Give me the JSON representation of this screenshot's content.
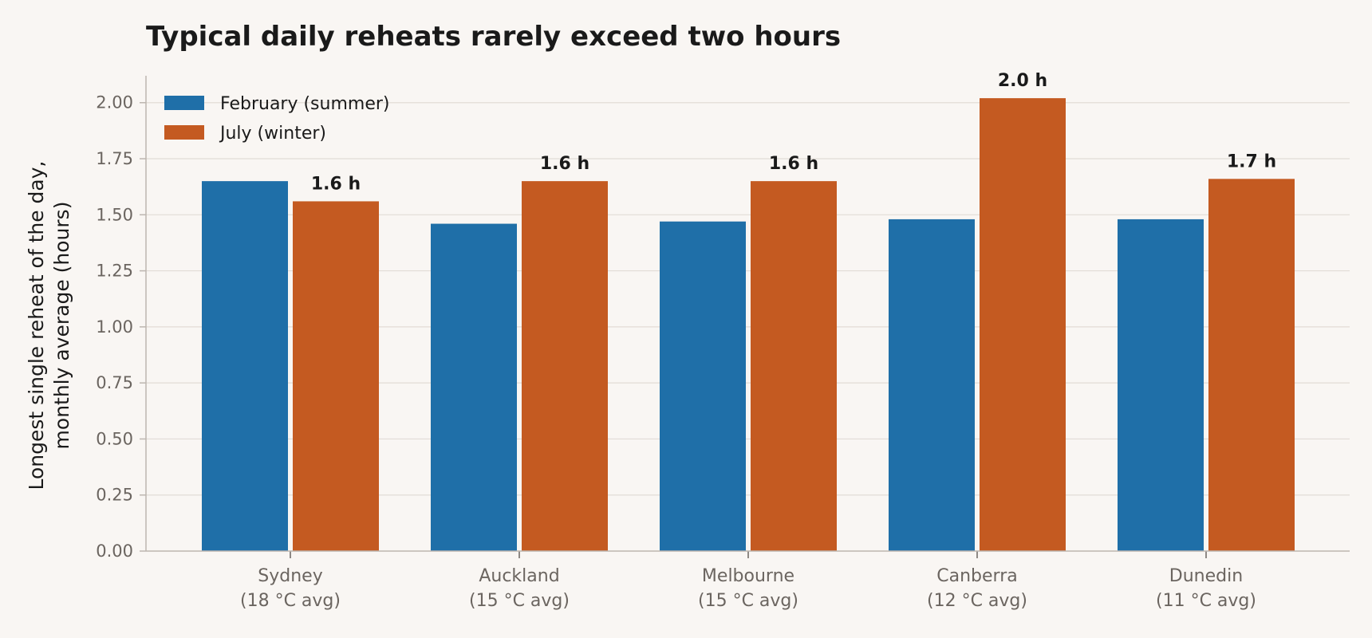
{
  "chart_data": {
    "type": "bar",
    "title": "Typical daily reheats rarely exceed two hours",
    "ylabel_lines": [
      "Longest single reheat of the day,",
      "monthly average (hours)"
    ],
    "xlabel": "",
    "categories": [
      [
        "Sydney",
        "(18 °C avg)"
      ],
      [
        "Auckland",
        "(15 °C avg)"
      ],
      [
        "Melbourne",
        "(15 °C avg)"
      ],
      [
        "Canberra",
        "(12 °C avg)"
      ],
      [
        "Dunedin",
        "(11 °C avg)"
      ]
    ],
    "series": [
      {
        "name": "February (summer)",
        "color": "#1f6fa8",
        "values": [
          1.65,
          1.46,
          1.47,
          1.48,
          1.48
        ]
      },
      {
        "name": "July (winter)",
        "color": "#c45a21",
        "values": [
          1.56,
          1.65,
          1.65,
          2.02,
          1.66
        ],
        "data_labels": [
          "1.6 h",
          "1.6 h",
          "1.6 h",
          "2.0 h",
          "1.7 h"
        ]
      }
    ],
    "ylim": [
      0,
      2.12
    ],
    "yticks": [
      "0.00",
      "0.25",
      "0.50",
      "0.75",
      "1.00",
      "1.25",
      "1.50",
      "1.75",
      "2.00"
    ],
    "grid": "horizontal",
    "legend_position": "top-left"
  }
}
